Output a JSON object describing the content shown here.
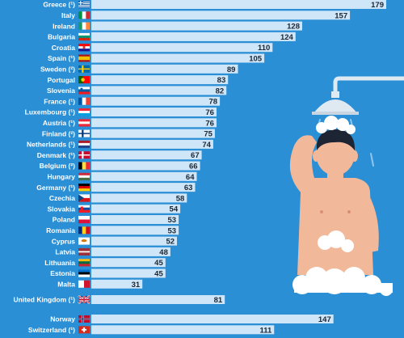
{
  "chart_data": {
    "type": "bar",
    "orientation": "horizontal",
    "title": "",
    "xlabel": "",
    "ylabel": "",
    "xlim": [
      0,
      179
    ],
    "grid": false,
    "legend": "none",
    "colors": {
      "background": "#2b8fd6",
      "bar": "#cfe6f8",
      "label": "#ffffff",
      "value": "#1c2733"
    },
    "groups": [
      {
        "name": "eu",
        "items": [
          {
            "country": "Greece (¹)",
            "value": 179,
            "flag": "greece-flag-icon"
          },
          {
            "country": "Italy",
            "value": 157,
            "flag": "italy-flag-icon"
          },
          {
            "country": "Ireland",
            "value": 128,
            "flag": "ireland-flag-icon"
          },
          {
            "country": "Bulgaria",
            "value": 124,
            "flag": "bulgaria-flag-icon"
          },
          {
            "country": "Croatia",
            "value": 110,
            "flag": "croatia-flag-icon"
          },
          {
            "country": "Spain (¹)",
            "value": 105,
            "flag": "spain-flag-icon"
          },
          {
            "country": "Sweden (²)",
            "value": 89,
            "flag": "sweden-flag-icon"
          },
          {
            "country": "Portugal",
            "value": 83,
            "flag": "portugal-flag-icon"
          },
          {
            "country": "Slovenia",
            "value": 82,
            "flag": "slovenia-flag-icon"
          },
          {
            "country": "France (¹)",
            "value": 78,
            "flag": "france-flag-icon"
          },
          {
            "country": "Luxembourg (¹)",
            "value": 76,
            "flag": "luxembourg-flag-icon"
          },
          {
            "country": "Austria (¹)",
            "value": 76,
            "flag": "austria-flag-icon"
          },
          {
            "country": "Finland (²)",
            "value": 75,
            "flag": "finland-flag-icon"
          },
          {
            "country": "Netherlands (¹)",
            "value": 74,
            "flag": "netherlands-flag-icon"
          },
          {
            "country": "Denmark (¹)",
            "value": 67,
            "flag": "denmark-flag-icon"
          },
          {
            "country": "Belgium (²)",
            "value": 66,
            "flag": "belgium-flag-icon"
          },
          {
            "country": "Hungary",
            "value": 64,
            "flag": "hungary-flag-icon"
          },
          {
            "country": "Germany (¹)",
            "value": 63,
            "flag": "germany-flag-icon"
          },
          {
            "country": "Czechia",
            "value": 58,
            "flag": "czechia-flag-icon"
          },
          {
            "country": "Slovakia",
            "value": 54,
            "flag": "slovakia-flag-icon"
          },
          {
            "country": "Poland",
            "value": 53,
            "flag": "poland-flag-icon"
          },
          {
            "country": "Romania",
            "value": 53,
            "flag": "romania-flag-icon"
          },
          {
            "country": "Cyprus",
            "value": 52,
            "flag": "cyprus-flag-icon"
          },
          {
            "country": "Latvia",
            "value": 48,
            "flag": "latvia-flag-icon"
          },
          {
            "country": "Lithuania",
            "value": 45,
            "flag": "lithuania-flag-icon"
          },
          {
            "country": "Estonia",
            "value": 45,
            "flag": "estonia-flag-icon"
          },
          {
            "country": "Malta",
            "value": 31,
            "flag": "malta-flag-icon"
          }
        ]
      },
      {
        "name": "uk",
        "items": [
          {
            "country": "United Kingdom (¹)",
            "value": 81,
            "flag": "united-kingdom-flag-icon"
          }
        ]
      },
      {
        "name": "efta",
        "items": [
          {
            "country": "Norway",
            "value": 147,
            "flag": "norway-flag-icon"
          },
          {
            "country": "Switzerland (¹)",
            "value": 111,
            "flag": "switzerland-flag-icon"
          }
        ]
      }
    ]
  },
  "illustration": {
    "name": "person-showering",
    "icons": [
      "shower-head-icon",
      "water-drops-icon",
      "person-icon",
      "soap-foam-icon"
    ],
    "colors": {
      "skin": "#f2b89a",
      "hair": "#1d2535",
      "pipe": "#dfe9f2",
      "foam": "#ffffff",
      "water": "#8fc6ef"
    }
  }
}
